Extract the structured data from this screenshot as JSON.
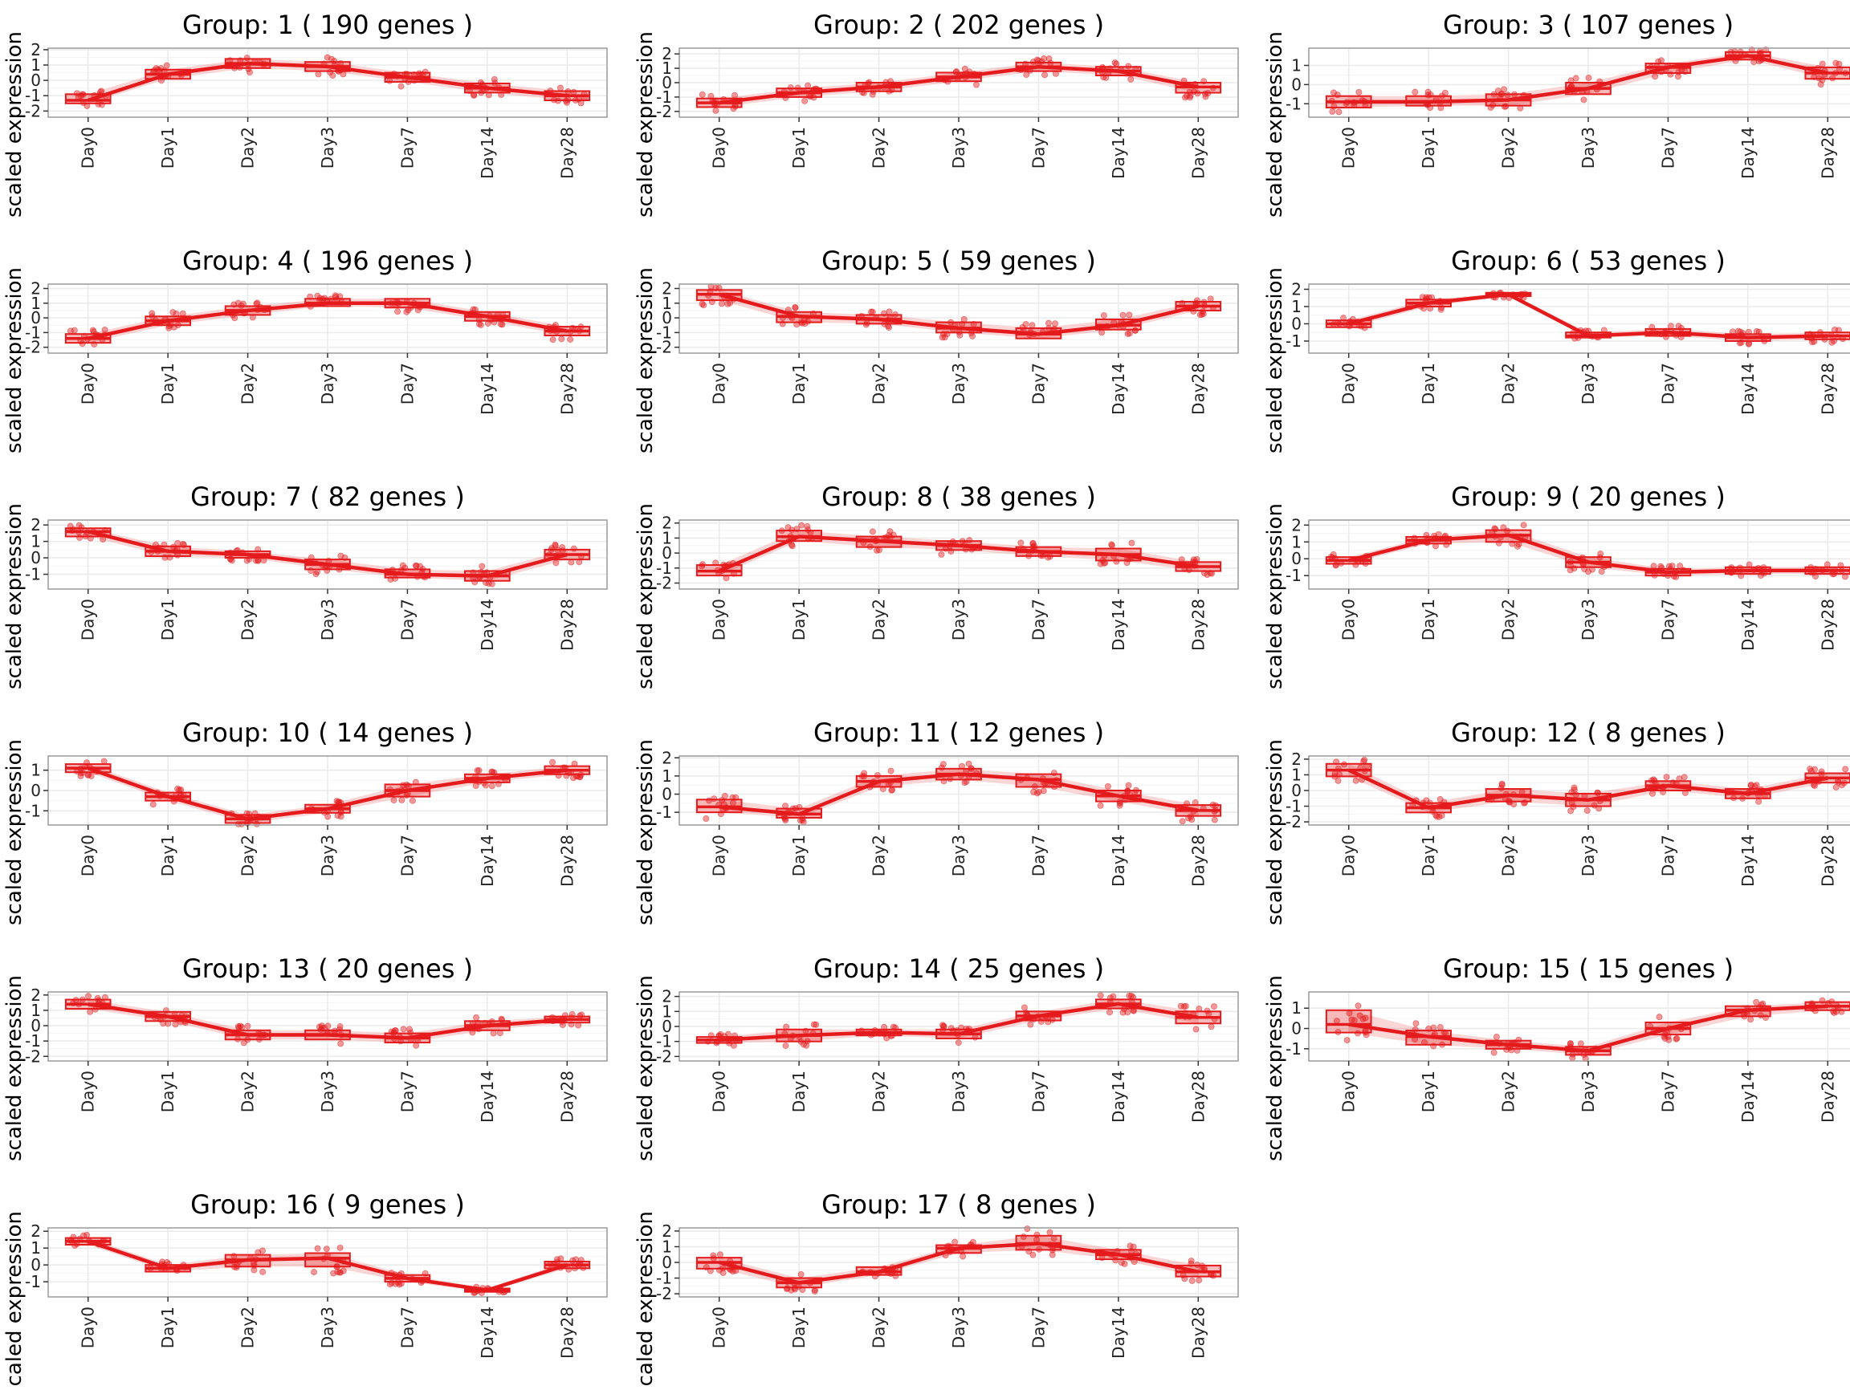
{
  "figure": {
    "colors": {
      "series": "#e41a1c",
      "panel_border": "#9a9a9a",
      "grid": "#ebebeb",
      "text": "#000000"
    },
    "ylabel": "scaled expression",
    "categories": [
      "Day0",
      "Day1",
      "Day2",
      "Day3",
      "Day7",
      "Day14",
      "Day28"
    ]
  },
  "chart_data": [
    {
      "type": "line",
      "title": "Group: 1 ( 190  genes )",
      "ylabel": "scaled expression",
      "categories": [
        "Day0",
        "Day1",
        "Day2",
        "Day3",
        "Day7",
        "Day14",
        "Day28"
      ],
      "yticks": [
        -2,
        -1,
        0,
        1,
        2
      ],
      "ylim": [
        -2.4,
        2.1
      ],
      "median": [
        -1.3,
        0.4,
        1.1,
        0.9,
        0.2,
        -0.5,
        -1.0
      ],
      "q1": [
        -1.5,
        0.1,
        0.8,
        0.6,
        -0.1,
        -0.8,
        -1.3
      ],
      "q3": [
        -0.9,
        0.7,
        1.4,
        1.2,
        0.5,
        -0.2,
        -0.7
      ],
      "series": [
        {
          "name": "Group: 1",
          "values": [
            -1.3,
            0.4,
            1.1,
            0.9,
            0.2,
            -0.5,
            -1.0
          ]
        }
      ]
    },
    {
      "type": "line",
      "title": "Group: 2 ( 202  genes )",
      "ylabel": "scaled expression",
      "categories": [
        "Day0",
        "Day1",
        "Day2",
        "Day3",
        "Day7",
        "Day14",
        "Day28"
      ],
      "yticks": [
        -2,
        -1,
        0,
        1,
        2
      ],
      "ylim": [
        -2.4,
        2.4
      ],
      "median": [
        -1.4,
        -0.7,
        -0.3,
        0.4,
        1.1,
        0.8,
        -0.3
      ],
      "q1": [
        -1.7,
        -1.0,
        -0.6,
        0.1,
        0.8,
        0.5,
        -0.7
      ],
      "q3": [
        -1.1,
        -0.4,
        0.0,
        0.7,
        1.4,
        1.1,
        0.0
      ],
      "series": [
        {
          "name": "Group: 2",
          "values": [
            -1.4,
            -0.7,
            -0.3,
            0.4,
            1.1,
            0.8,
            -0.3
          ]
        }
      ]
    },
    {
      "type": "line",
      "title": "Group: 3 ( 107  genes )",
      "ylabel": "scaled expression",
      "categories": [
        "Day0",
        "Day1",
        "Day2",
        "Day3",
        "Day7",
        "Day14",
        "Day28"
      ],
      "yticks": [
        -1,
        0,
        1
      ],
      "ylim": [
        -1.7,
        1.9
      ],
      "median": [
        -0.9,
        -0.9,
        -0.8,
        -0.2,
        0.9,
        1.5,
        0.6
      ],
      "q1": [
        -1.2,
        -1.1,
        -1.1,
        -0.5,
        0.6,
        1.3,
        0.3
      ],
      "q3": [
        -0.6,
        -0.6,
        -0.5,
        0.1,
        1.1,
        1.7,
        0.9
      ],
      "series": [
        {
          "name": "Group: 3",
          "values": [
            -0.9,
            -0.9,
            -0.8,
            -0.2,
            0.9,
            1.5,
            0.6
          ]
        }
      ]
    },
    {
      "type": "line",
      "title": "Group: 4 ( 196  genes )",
      "ylabel": "scaled expression",
      "categories": [
        "Day0",
        "Day1",
        "Day2",
        "Day3",
        "Day7",
        "Day14",
        "Day28"
      ],
      "yticks": [
        -2,
        -1,
        0,
        1,
        2
      ],
      "ylim": [
        -2.4,
        2.3
      ],
      "median": [
        -1.4,
        -0.2,
        0.5,
        1.0,
        1.0,
        0.1,
        -0.9
      ],
      "q1": [
        -1.7,
        -0.5,
        0.2,
        0.8,
        0.7,
        -0.2,
        -1.2
      ],
      "q3": [
        -1.1,
        0.1,
        0.8,
        1.3,
        1.3,
        0.4,
        -0.6
      ],
      "series": [
        {
          "name": "Group: 4",
          "values": [
            -1.4,
            -0.2,
            0.5,
            1.0,
            1.0,
            0.1,
            -0.9
          ]
        }
      ]
    },
    {
      "type": "line",
      "title": "Group: 5 ( 59  genes )",
      "ylabel": "scaled expression",
      "categories": [
        "Day0",
        "Day1",
        "Day2",
        "Day3",
        "Day7",
        "Day14",
        "Day28"
      ],
      "yticks": [
        -2,
        -1,
        0,
        1,
        2
      ],
      "ylim": [
        -2.4,
        2.3
      ],
      "median": [
        1.6,
        0.1,
        -0.1,
        -0.7,
        -1.1,
        -0.5,
        0.8
      ],
      "q1": [
        1.2,
        -0.3,
        -0.4,
        -1.0,
        -1.4,
        -0.8,
        0.5
      ],
      "q3": [
        1.9,
        0.4,
        0.2,
        -0.3,
        -0.7,
        -0.1,
        1.1
      ],
      "series": [
        {
          "name": "Group: 5",
          "values": [
            1.6,
            0.1,
            -0.1,
            -0.7,
            -1.1,
            -0.5,
            0.8
          ]
        }
      ]
    },
    {
      "type": "line",
      "title": "Group: 6 ( 53  genes )",
      "ylabel": "scaled expression",
      "categories": [
        "Day0",
        "Day1",
        "Day2",
        "Day3",
        "Day7",
        "Day14",
        "Day28"
      ],
      "yticks": [
        -1,
        0,
        1,
        2
      ],
      "ylim": [
        -1.7,
        2.3
      ],
      "median": [
        0.0,
        1.2,
        1.7,
        -0.7,
        -0.5,
        -0.8,
        -0.7
      ],
      "q1": [
        -0.2,
        1.0,
        1.6,
        -0.8,
        -0.7,
        -1.0,
        -0.9
      ],
      "q3": [
        0.2,
        1.4,
        1.8,
        -0.5,
        -0.3,
        -0.6,
        -0.5
      ],
      "series": [
        {
          "name": "Group: 6",
          "values": [
            0.0,
            1.2,
            1.7,
            -0.7,
            -0.5,
            -0.8,
            -0.7
          ]
        }
      ]
    },
    {
      "type": "line",
      "title": "Group: 7 ( 82  genes )",
      "ylabel": "scaled expression",
      "categories": [
        "Day0",
        "Day1",
        "Day2",
        "Day3",
        "Day7",
        "Day14",
        "Day28"
      ],
      "yticks": [
        -1,
        0,
        1,
        2
      ],
      "ylim": [
        -1.9,
        2.3
      ],
      "median": [
        1.6,
        0.4,
        0.2,
        -0.4,
        -1.0,
        -1.1,
        0.2
      ],
      "q1": [
        1.3,
        0.1,
        0.0,
        -0.7,
        -1.2,
        -1.4,
        -0.1
      ],
      "q3": [
        1.8,
        0.7,
        0.4,
        -0.1,
        -0.7,
        -0.8,
        0.5
      ],
      "series": [
        {
          "name": "Group: 7",
          "values": [
            1.6,
            0.4,
            0.2,
            -0.4,
            -1.0,
            -1.1,
            0.2
          ]
        }
      ]
    },
    {
      "type": "line",
      "title": "Group: 8 ( 38  genes )",
      "ylabel": "scaled expression",
      "categories": [
        "Day0",
        "Day1",
        "Day2",
        "Day3",
        "Day7",
        "Day14",
        "Day28"
      ],
      "yticks": [
        -2,
        -1,
        0,
        1,
        2
      ],
      "ylim": [
        -2.4,
        2.2
      ],
      "median": [
        -1.2,
        1.1,
        0.8,
        0.5,
        0.1,
        -0.1,
        -0.9
      ],
      "q1": [
        -1.5,
        0.8,
        0.4,
        0.2,
        -0.2,
        -0.5,
        -1.2
      ],
      "q3": [
        -0.8,
        1.5,
        1.1,
        0.8,
        0.4,
        0.3,
        -0.6
      ],
      "series": [
        {
          "name": "Group: 8",
          "values": [
            -1.2,
            1.1,
            0.8,
            0.5,
            0.1,
            -0.1,
            -0.9
          ]
        }
      ]
    },
    {
      "type": "line",
      "title": "Group: 9 ( 20  genes )",
      "ylabel": "scaled expression",
      "categories": [
        "Day0",
        "Day1",
        "Day2",
        "Day3",
        "Day7",
        "Day14",
        "Day28"
      ],
      "yticks": [
        -1,
        0,
        1,
        2
      ],
      "ylim": [
        -1.8,
        2.3
      ],
      "median": [
        -0.1,
        1.1,
        1.4,
        -0.2,
        -0.8,
        -0.7,
        -0.7
      ],
      "q1": [
        -0.3,
        0.9,
        1.0,
        -0.5,
        -1.0,
        -0.9,
        -0.9
      ],
      "q3": [
        0.1,
        1.3,
        1.7,
        0.1,
        -0.6,
        -0.5,
        -0.5
      ],
      "series": [
        {
          "name": "Group: 9",
          "values": [
            -0.1,
            1.1,
            1.4,
            -0.2,
            -0.8,
            -0.7,
            -0.7
          ]
        }
      ]
    },
    {
      "type": "line",
      "title": "Group: 10 ( 14  genes )",
      "ylabel": "scaled expression",
      "categories": [
        "Day0",
        "Day1",
        "Day2",
        "Day3",
        "Day7",
        "Day14",
        "Day28"
      ],
      "yticks": [
        -1,
        0,
        1
      ],
      "ylim": [
        -1.7,
        1.7
      ],
      "median": [
        1.1,
        -0.3,
        -1.4,
        -0.9,
        0.0,
        0.6,
        1.0
      ],
      "q1": [
        0.9,
        -0.5,
        -1.6,
        -1.1,
        -0.3,
        0.4,
        0.8
      ],
      "q3": [
        1.3,
        -0.1,
        -1.2,
        -0.7,
        0.3,
        0.8,
        1.2
      ],
      "series": [
        {
          "name": "Group: 10",
          "values": [
            1.1,
            -0.3,
            -1.4,
            -0.9,
            0.0,
            0.6,
            1.0
          ]
        }
      ]
    },
    {
      "type": "line",
      "title": "Group: 11 ( 12  genes )",
      "ylabel": "scaled expression",
      "categories": [
        "Day0",
        "Day1",
        "Day2",
        "Day3",
        "Day7",
        "Day14",
        "Day28"
      ],
      "yticks": [
        -1,
        0,
        1,
        2
      ],
      "ylim": [
        -1.7,
        2.1
      ],
      "median": [
        -0.7,
        -1.1,
        0.7,
        1.1,
        0.8,
        -0.1,
        -0.9
      ],
      "q1": [
        -1.0,
        -1.3,
        0.4,
        0.8,
        0.4,
        -0.4,
        -1.2
      ],
      "q3": [
        -0.3,
        -0.8,
        1.0,
        1.4,
        1.1,
        0.2,
        -0.6
      ],
      "series": [
        {
          "name": "Group: 11",
          "values": [
            -0.7,
            -1.1,
            0.7,
            1.1,
            0.8,
            -0.1,
            -0.9
          ]
        }
      ]
    },
    {
      "type": "line",
      "title": "Group: 12 ( 8  genes )",
      "ylabel": "scaled expression",
      "categories": [
        "Day0",
        "Day1",
        "Day2",
        "Day3",
        "Day7",
        "Day14",
        "Day28"
      ],
      "yticks": [
        -2,
        -1,
        0,
        1,
        2
      ],
      "ylim": [
        -2.2,
        2.2
      ],
      "median": [
        1.3,
        -1.1,
        -0.3,
        -0.6,
        0.3,
        -0.2,
        0.8
      ],
      "q1": [
        0.9,
        -1.4,
        -0.7,
        -1.0,
        0.0,
        -0.5,
        0.5
      ],
      "q3": [
        1.7,
        -0.8,
        0.1,
        -0.2,
        0.6,
        0.1,
        1.1
      ],
      "series": [
        {
          "name": "Group: 12",
          "values": [
            1.3,
            -1.1,
            -0.3,
            -0.6,
            0.3,
            -0.2,
            0.8
          ]
        }
      ]
    },
    {
      "type": "line",
      "title": "Group: 13 ( 20  genes )",
      "ylabel": "scaled expression",
      "categories": [
        "Day0",
        "Day1",
        "Day2",
        "Day3",
        "Day7",
        "Day14",
        "Day28"
      ],
      "yticks": [
        -2,
        -1,
        0,
        1,
        2
      ],
      "ylim": [
        -2.3,
        2.2
      ],
      "median": [
        1.4,
        0.6,
        -0.6,
        -0.6,
        -0.8,
        0.0,
        0.4
      ],
      "q1": [
        1.1,
        0.3,
        -0.9,
        -0.9,
        -1.1,
        -0.3,
        0.2
      ],
      "q3": [
        1.7,
        0.9,
        -0.3,
        -0.3,
        -0.5,
        0.3,
        0.6
      ],
      "series": [
        {
          "name": "Group: 13",
          "values": [
            1.4,
            0.6,
            -0.6,
            -0.6,
            -0.8,
            0.0,
            0.4
          ]
        }
      ]
    },
    {
      "type": "line",
      "title": "Group: 14 ( 25  genes )",
      "ylabel": "scaled expression",
      "categories": [
        "Day0",
        "Day1",
        "Day2",
        "Day3",
        "Day7",
        "Day14",
        "Day28"
      ],
      "yticks": [
        -2,
        -1,
        0,
        1,
        2
      ],
      "ylim": [
        -2.3,
        2.3
      ],
      "median": [
        -0.9,
        -0.6,
        -0.4,
        -0.5,
        0.7,
        1.5,
        0.6
      ],
      "q1": [
        -1.1,
        -1.0,
        -0.6,
        -0.8,
        0.4,
        1.2,
        0.2
      ],
      "q3": [
        -0.7,
        -0.2,
        -0.2,
        -0.2,
        1.0,
        1.8,
        1.0
      ],
      "series": [
        {
          "name": "Group: 14",
          "values": [
            -0.9,
            -0.6,
            -0.4,
            -0.5,
            0.7,
            1.5,
            0.6
          ]
        }
      ]
    },
    {
      "type": "line",
      "title": "Group: 15 ( 15  genes )",
      "ylabel": "scaled expression",
      "categories": [
        "Day0",
        "Day1",
        "Day2",
        "Day3",
        "Day7",
        "Day14",
        "Day28"
      ],
      "yticks": [
        -1,
        0,
        1
      ],
      "ylim": [
        -1.6,
        1.8
      ],
      "median": [
        0.2,
        -0.4,
        -0.8,
        -1.1,
        0.0,
        0.9,
        1.1
      ],
      "q1": [
        -0.2,
        -0.8,
        -1.0,
        -1.3,
        -0.3,
        0.6,
        0.9
      ],
      "q3": [
        0.9,
        -0.1,
        -0.6,
        -0.9,
        0.3,
        1.1,
        1.3
      ],
      "series": [
        {
          "name": "Group: 15",
          "values": [
            0.2,
            -0.4,
            -0.8,
            -1.1,
            0.0,
            0.9,
            1.1
          ]
        }
      ]
    },
    {
      "type": "line",
      "title": "Group: 16 ( 9  genes )",
      "ylabel": "scaled expression",
      "categories": [
        "Day0",
        "Day1",
        "Day2",
        "Day3",
        "Day7",
        "Day14",
        "Day28"
      ],
      "yticks": [
        -1,
        0,
        1,
        2
      ],
      "ylim": [
        -1.9,
        2.2
      ],
      "median": [
        1.4,
        -0.2,
        0.3,
        0.4,
        -0.8,
        -1.5,
        0.0
      ],
      "q1": [
        1.2,
        -0.4,
        -0.1,
        -0.1,
        -1.0,
        -1.6,
        -0.2
      ],
      "q3": [
        1.6,
        0.0,
        0.6,
        0.7,
        -0.6,
        -1.4,
        0.2
      ],
      "series": [
        {
          "name": "Group: 16",
          "values": [
            1.4,
            -0.2,
            0.3,
            0.4,
            -0.8,
            -1.5,
            0.0
          ]
        }
      ]
    },
    {
      "type": "line",
      "title": "Group: 17 ( 8  genes )",
      "ylabel": "scaled expression",
      "categories": [
        "Day0",
        "Day1",
        "Day2",
        "Day3",
        "Day7",
        "Day14",
        "Day28"
      ],
      "yticks": [
        -2,
        -1,
        0,
        1,
        2
      ],
      "ylim": [
        -2.2,
        2.2
      ],
      "median": [
        0.0,
        -1.3,
        -0.6,
        0.9,
        1.2,
        0.5,
        -0.6
      ],
      "q1": [
        -0.4,
        -1.6,
        -0.8,
        0.6,
        0.8,
        0.2,
        -0.9
      ],
      "q3": [
        0.3,
        -1.0,
        -0.3,
        1.1,
        1.7,
        0.8,
        -0.2
      ],
      "series": [
        {
          "name": "Group: 17",
          "values": [
            0.0,
            -1.3,
            -0.6,
            0.9,
            1.2,
            0.5,
            -0.6
          ]
        }
      ]
    }
  ]
}
